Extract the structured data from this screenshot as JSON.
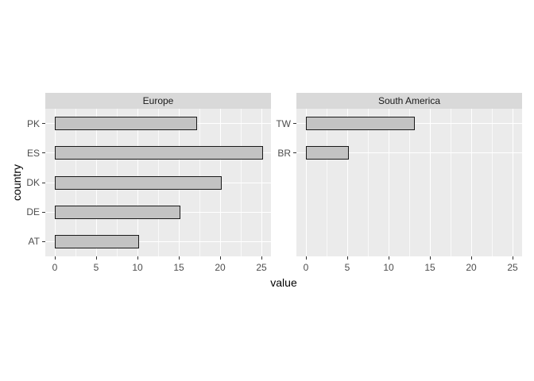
{
  "chart_data": {
    "type": "bar",
    "orientation": "horizontal",
    "xlabel": "value",
    "ylabel": "country",
    "xlim": [
      0,
      25
    ],
    "x_ticks": [
      0,
      5,
      10,
      15,
      20,
      25
    ],
    "x_minor_ticks": [
      2.5,
      7.5,
      12.5,
      17.5,
      22.5
    ],
    "row_slots": 5,
    "grid": true,
    "legend": "none",
    "facets": [
      {
        "label": "Europe",
        "categories": [
          "PK",
          "ES",
          "DK",
          "DE",
          "AT"
        ],
        "values": [
          17,
          25,
          20,
          15,
          10
        ]
      },
      {
        "label": "South America",
        "categories": [
          "TW",
          "BR"
        ],
        "values": [
          13,
          5
        ]
      }
    ]
  },
  "colors": {
    "background": "#FFFFFF",
    "panel_bg": "#EBEBEB",
    "strip_bg": "#D9D9D9",
    "grid_line": "#FFFFFF",
    "bar_fill": "#C3C3C3",
    "bar_border": "#1A1A1A",
    "axis_text": "#4D4D4D",
    "tick_mark": "#333333",
    "title_text": "#000000"
  }
}
